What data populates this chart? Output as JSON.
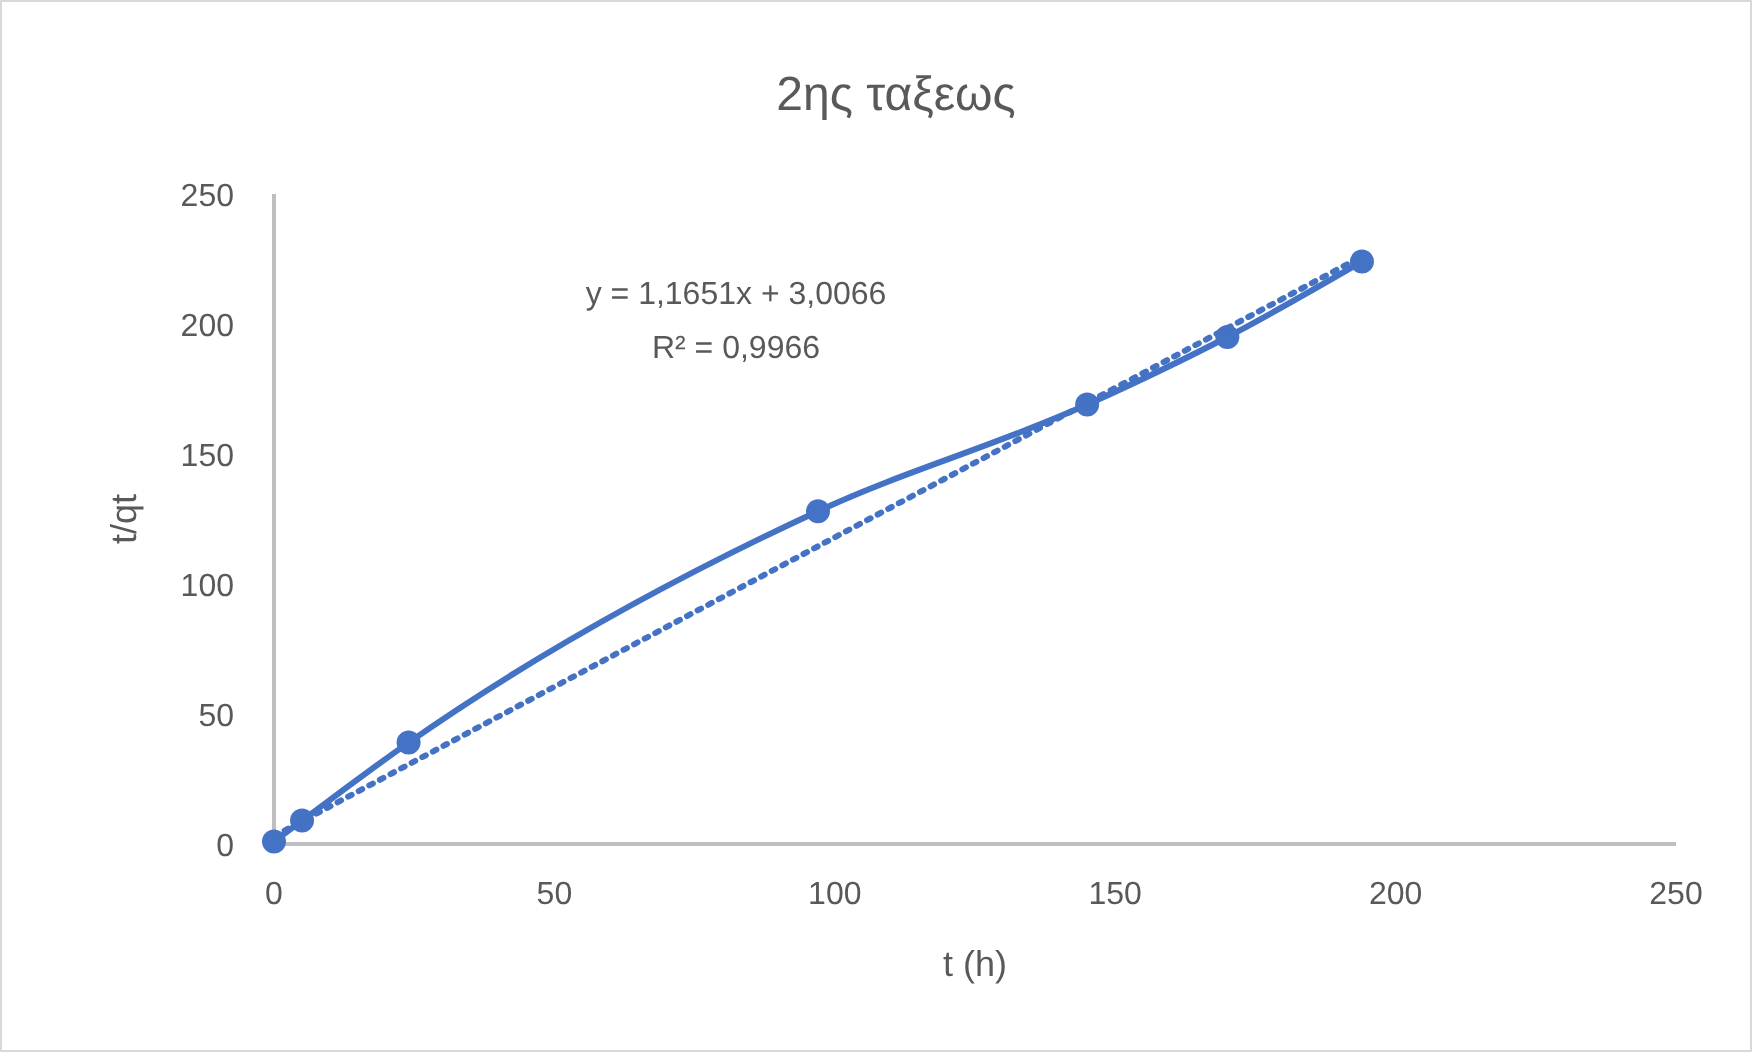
{
  "chart_data": {
    "type": "line",
    "title": "2ης ταξεως",
    "xlabel": "t (h)",
    "ylabel": "t/qt",
    "xlim": [
      0,
      250
    ],
    "xticks": [
      0,
      50,
      100,
      150,
      200,
      250
    ],
    "ylim": [
      0,
      250
    ],
    "yticks": [
      0,
      50,
      100,
      150,
      200,
      250
    ],
    "grid": false,
    "annotations": [
      "y = 1,1651x + 3,0066",
      "R² = 0,9966"
    ],
    "series": [
      {
        "color": "#4472c4",
        "marker": "circle",
        "line_style": "solid",
        "x": [
          0,
          5,
          24,
          97,
          145,
          170,
          194
        ],
        "values": [
          1,
          9,
          39,
          128,
          169,
          195,
          224
        ]
      },
      {
        "color": "#4472c4",
        "marker": "none",
        "line_style": "dotted",
        "x": [
          0,
          194
        ],
        "values": [
          3,
          226
        ]
      }
    ]
  }
}
